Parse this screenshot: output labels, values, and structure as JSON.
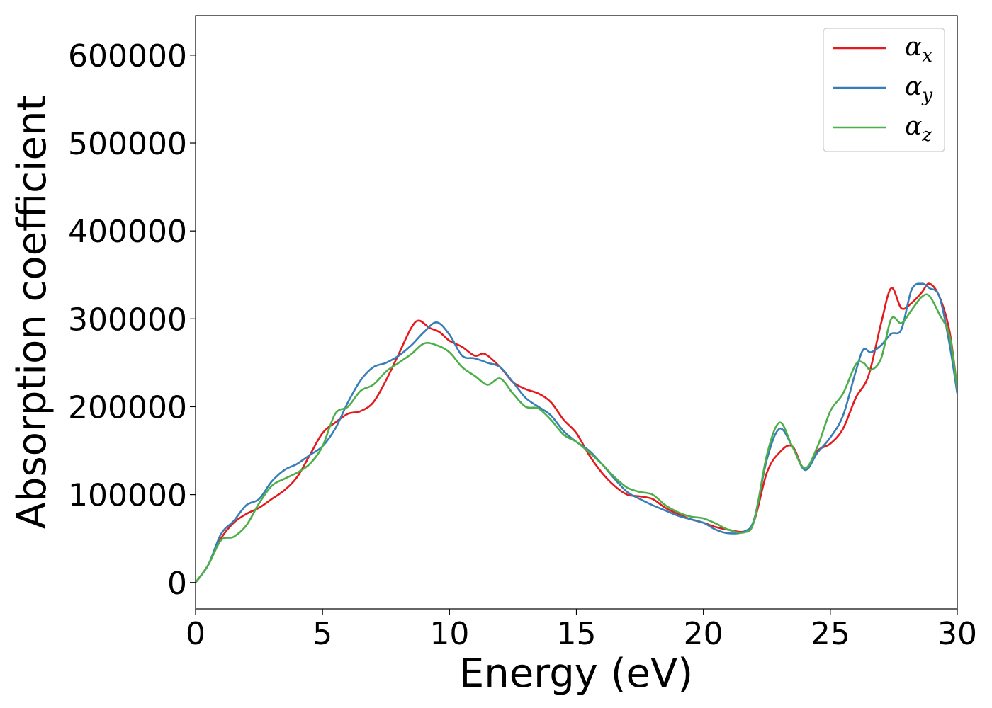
{
  "chart_data": {
    "type": "line",
    "xlabel": "Energy (eV)",
    "ylabel": "Absorption coefficient",
    "xlim": [
      0,
      30
    ],
    "ylim": [
      -30000,
      645000
    ],
    "xticks": [
      0,
      5,
      10,
      15,
      20,
      25,
      30
    ],
    "xtick_labels": [
      "0",
      "5",
      "10",
      "15",
      "20",
      "25",
      "30"
    ],
    "yticks": [
      0,
      100000,
      200000,
      300000,
      400000,
      500000,
      600000
    ],
    "ytick_labels": [
      "0",
      "100000",
      "200000",
      "300000",
      "400000",
      "500000",
      "600000"
    ],
    "grid": false,
    "legend_position": "top-right",
    "series": [
      {
        "name": "α",
        "subscript": "x",
        "color": "#e41a1c",
        "x": [
          0,
          0.5,
          1,
          1.5,
          2,
          2.5,
          3,
          3.5,
          4,
          4.5,
          5,
          5.5,
          6,
          6.5,
          7,
          7.5,
          8,
          8.5,
          8.8,
          9.2,
          9.6,
          10,
          10.5,
          11,
          11.4,
          12,
          12.5,
          13,
          13.5,
          14,
          14.5,
          15,
          15.5,
          16,
          16.5,
          17,
          17.5,
          18,
          18.5,
          19,
          19.5,
          20,
          20.5,
          21,
          21.6,
          22,
          22.5,
          23,
          23.5,
          24,
          24.5,
          25,
          25.5,
          26,
          26.5,
          27,
          27.4,
          27.8,
          28.2,
          28.6,
          28.9,
          29.3,
          29.7,
          30
        ],
        "values": [
          0,
          20000,
          50000,
          68000,
          78000,
          85000,
          95000,
          105000,
          120000,
          145000,
          170000,
          182000,
          192000,
          195000,
          205000,
          230000,
          260000,
          290000,
          298000,
          290000,
          285000,
          275000,
          268000,
          258000,
          260000,
          245000,
          228000,
          220000,
          215000,
          205000,
          185000,
          170000,
          145000,
          125000,
          110000,
          100000,
          98000,
          95000,
          85000,
          78000,
          72000,
          68000,
          63000,
          60000,
          58000,
          70000,
          125000,
          148000,
          155000,
          128000,
          150000,
          158000,
          175000,
          210000,
          235000,
          295000,
          335000,
          312000,
          318000,
          330000,
          340000,
          325000,
          285000,
          220000
        ]
      },
      {
        "name": "α",
        "subscript": "y",
        "color": "#377eb8",
        "x": [
          0,
          0.5,
          1,
          1.5,
          2,
          2.5,
          3,
          3.5,
          4,
          4.5,
          5,
          5.5,
          6,
          6.5,
          7,
          7.5,
          8,
          8.5,
          9,
          9.5,
          10,
          10.5,
          11,
          11.5,
          12,
          12.5,
          13,
          13.5,
          14,
          14.5,
          15,
          15.5,
          16,
          16.5,
          17,
          17.5,
          18,
          18.5,
          19,
          19.5,
          20,
          20.5,
          21,
          21.6,
          22,
          22.5,
          23,
          23.5,
          24,
          24.5,
          25,
          25.5,
          26,
          26.3,
          26.6,
          27,
          27.4,
          27.8,
          28.2,
          28.6,
          28.9,
          29.3,
          29.7,
          30
        ],
        "values": [
          0,
          20000,
          55000,
          70000,
          88000,
          95000,
          115000,
          128000,
          135000,
          145000,
          155000,
          175000,
          205000,
          230000,
          245000,
          250000,
          258000,
          270000,
          285000,
          296000,
          282000,
          258000,
          255000,
          250000,
          245000,
          228000,
          210000,
          200000,
          190000,
          172000,
          160000,
          150000,
          135000,
          118000,
          103000,
          95000,
          88000,
          82000,
          76000,
          72000,
          68000,
          60000,
          56000,
          58000,
          72000,
          140000,
          175000,
          155000,
          128000,
          148000,
          165000,
          190000,
          240000,
          265000,
          262000,
          270000,
          283000,
          288000,
          333000,
          340000,
          335000,
          325000,
          270000,
          215000
        ]
      },
      {
        "name": "α",
        "subscript": "z",
        "color": "#4daf4a",
        "x": [
          0,
          0.5,
          1,
          1.5,
          2,
          2.5,
          3,
          3.5,
          4,
          4.5,
          5,
          5.5,
          6,
          6.5,
          7,
          7.5,
          8,
          8.5,
          9,
          9.5,
          10,
          10.5,
          11,
          11.5,
          12,
          12.5,
          13,
          13.5,
          14,
          14.5,
          15,
          15.5,
          16,
          16.5,
          17,
          17.5,
          18,
          18.5,
          19,
          19.5,
          20,
          20.5,
          21,
          21.6,
          22,
          22.5,
          23,
          23.5,
          24,
          24.5,
          25,
          25.5,
          26,
          26.3,
          26.6,
          27,
          27.4,
          27.8,
          28.2,
          28.6,
          28.9,
          29.3,
          29.7,
          30
        ],
        "values": [
          0,
          20000,
          48000,
          52000,
          65000,
          90000,
          110000,
          118000,
          125000,
          135000,
          155000,
          192000,
          200000,
          218000,
          225000,
          240000,
          250000,
          260000,
          272000,
          270000,
          262000,
          245000,
          235000,
          225000,
          232000,
          215000,
          200000,
          198000,
          185000,
          168000,
          160000,
          148000,
          135000,
          120000,
          108000,
          103000,
          100000,
          88000,
          80000,
          75000,
          73000,
          67000,
          60000,
          57000,
          70000,
          145000,
          182000,
          155000,
          130000,
          155000,
          195000,
          215000,
          248000,
          250000,
          242000,
          255000,
          300000,
          295000,
          310000,
          325000,
          326000,
          305000,
          280000,
          220000
        ]
      }
    ]
  }
}
